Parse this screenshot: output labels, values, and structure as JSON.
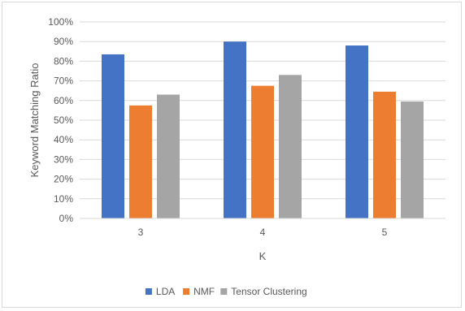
{
  "chart_data": {
    "type": "bar",
    "categories": [
      "3",
      "4",
      "5"
    ],
    "series": [
      {
        "name": "LDA",
        "values": [
          83.5,
          90.0,
          88.0
        ],
        "color": "#4472c4"
      },
      {
        "name": "NMF",
        "values": [
          57.5,
          67.5,
          64.5
        ],
        "color": "#ed7d31"
      },
      {
        "name": "Tensor Clustering",
        "values": [
          63.0,
          73.0,
          59.5
        ],
        "color": "#a5a5a5"
      }
    ],
    "xlabel": "K",
    "ylabel": "Keyword Matching Ratio",
    "ylim": [
      0,
      100
    ],
    "yticks": [
      "0%",
      "10%",
      "20%",
      "30%",
      "40%",
      "50%",
      "60%",
      "70%",
      "80%",
      "90%",
      "100%"
    ],
    "grid": true,
    "legend_position": "bottom"
  }
}
